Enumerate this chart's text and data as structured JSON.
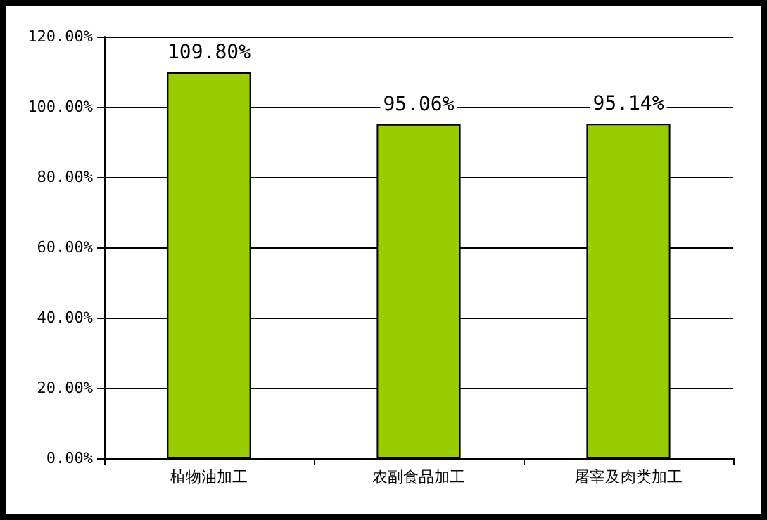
{
  "chart_data": {
    "type": "bar",
    "categories": [
      "植物油加工",
      "农副食品加工",
      "屠宰及肉类加工"
    ],
    "values": [
      109.8,
      95.06,
      95.14
    ],
    "color": "#99cc00",
    "value_labels": [
      "109.80%",
      "95.06%",
      "95.14%"
    ],
    "ylim": [
      0,
      120
    ],
    "yticks": [
      {
        "value": 0,
        "label": "0.00%"
      },
      {
        "value": 20,
        "label": "20.00%"
      },
      {
        "value": 40,
        "label": "40.00%"
      },
      {
        "value": 60,
        "label": "60.00%"
      },
      {
        "value": 80,
        "label": "80.00%"
      },
      {
        "value": 100,
        "label": "100.00%"
      },
      {
        "value": 120,
        "label": "120.00%"
      }
    ],
    "grid": "y"
  }
}
